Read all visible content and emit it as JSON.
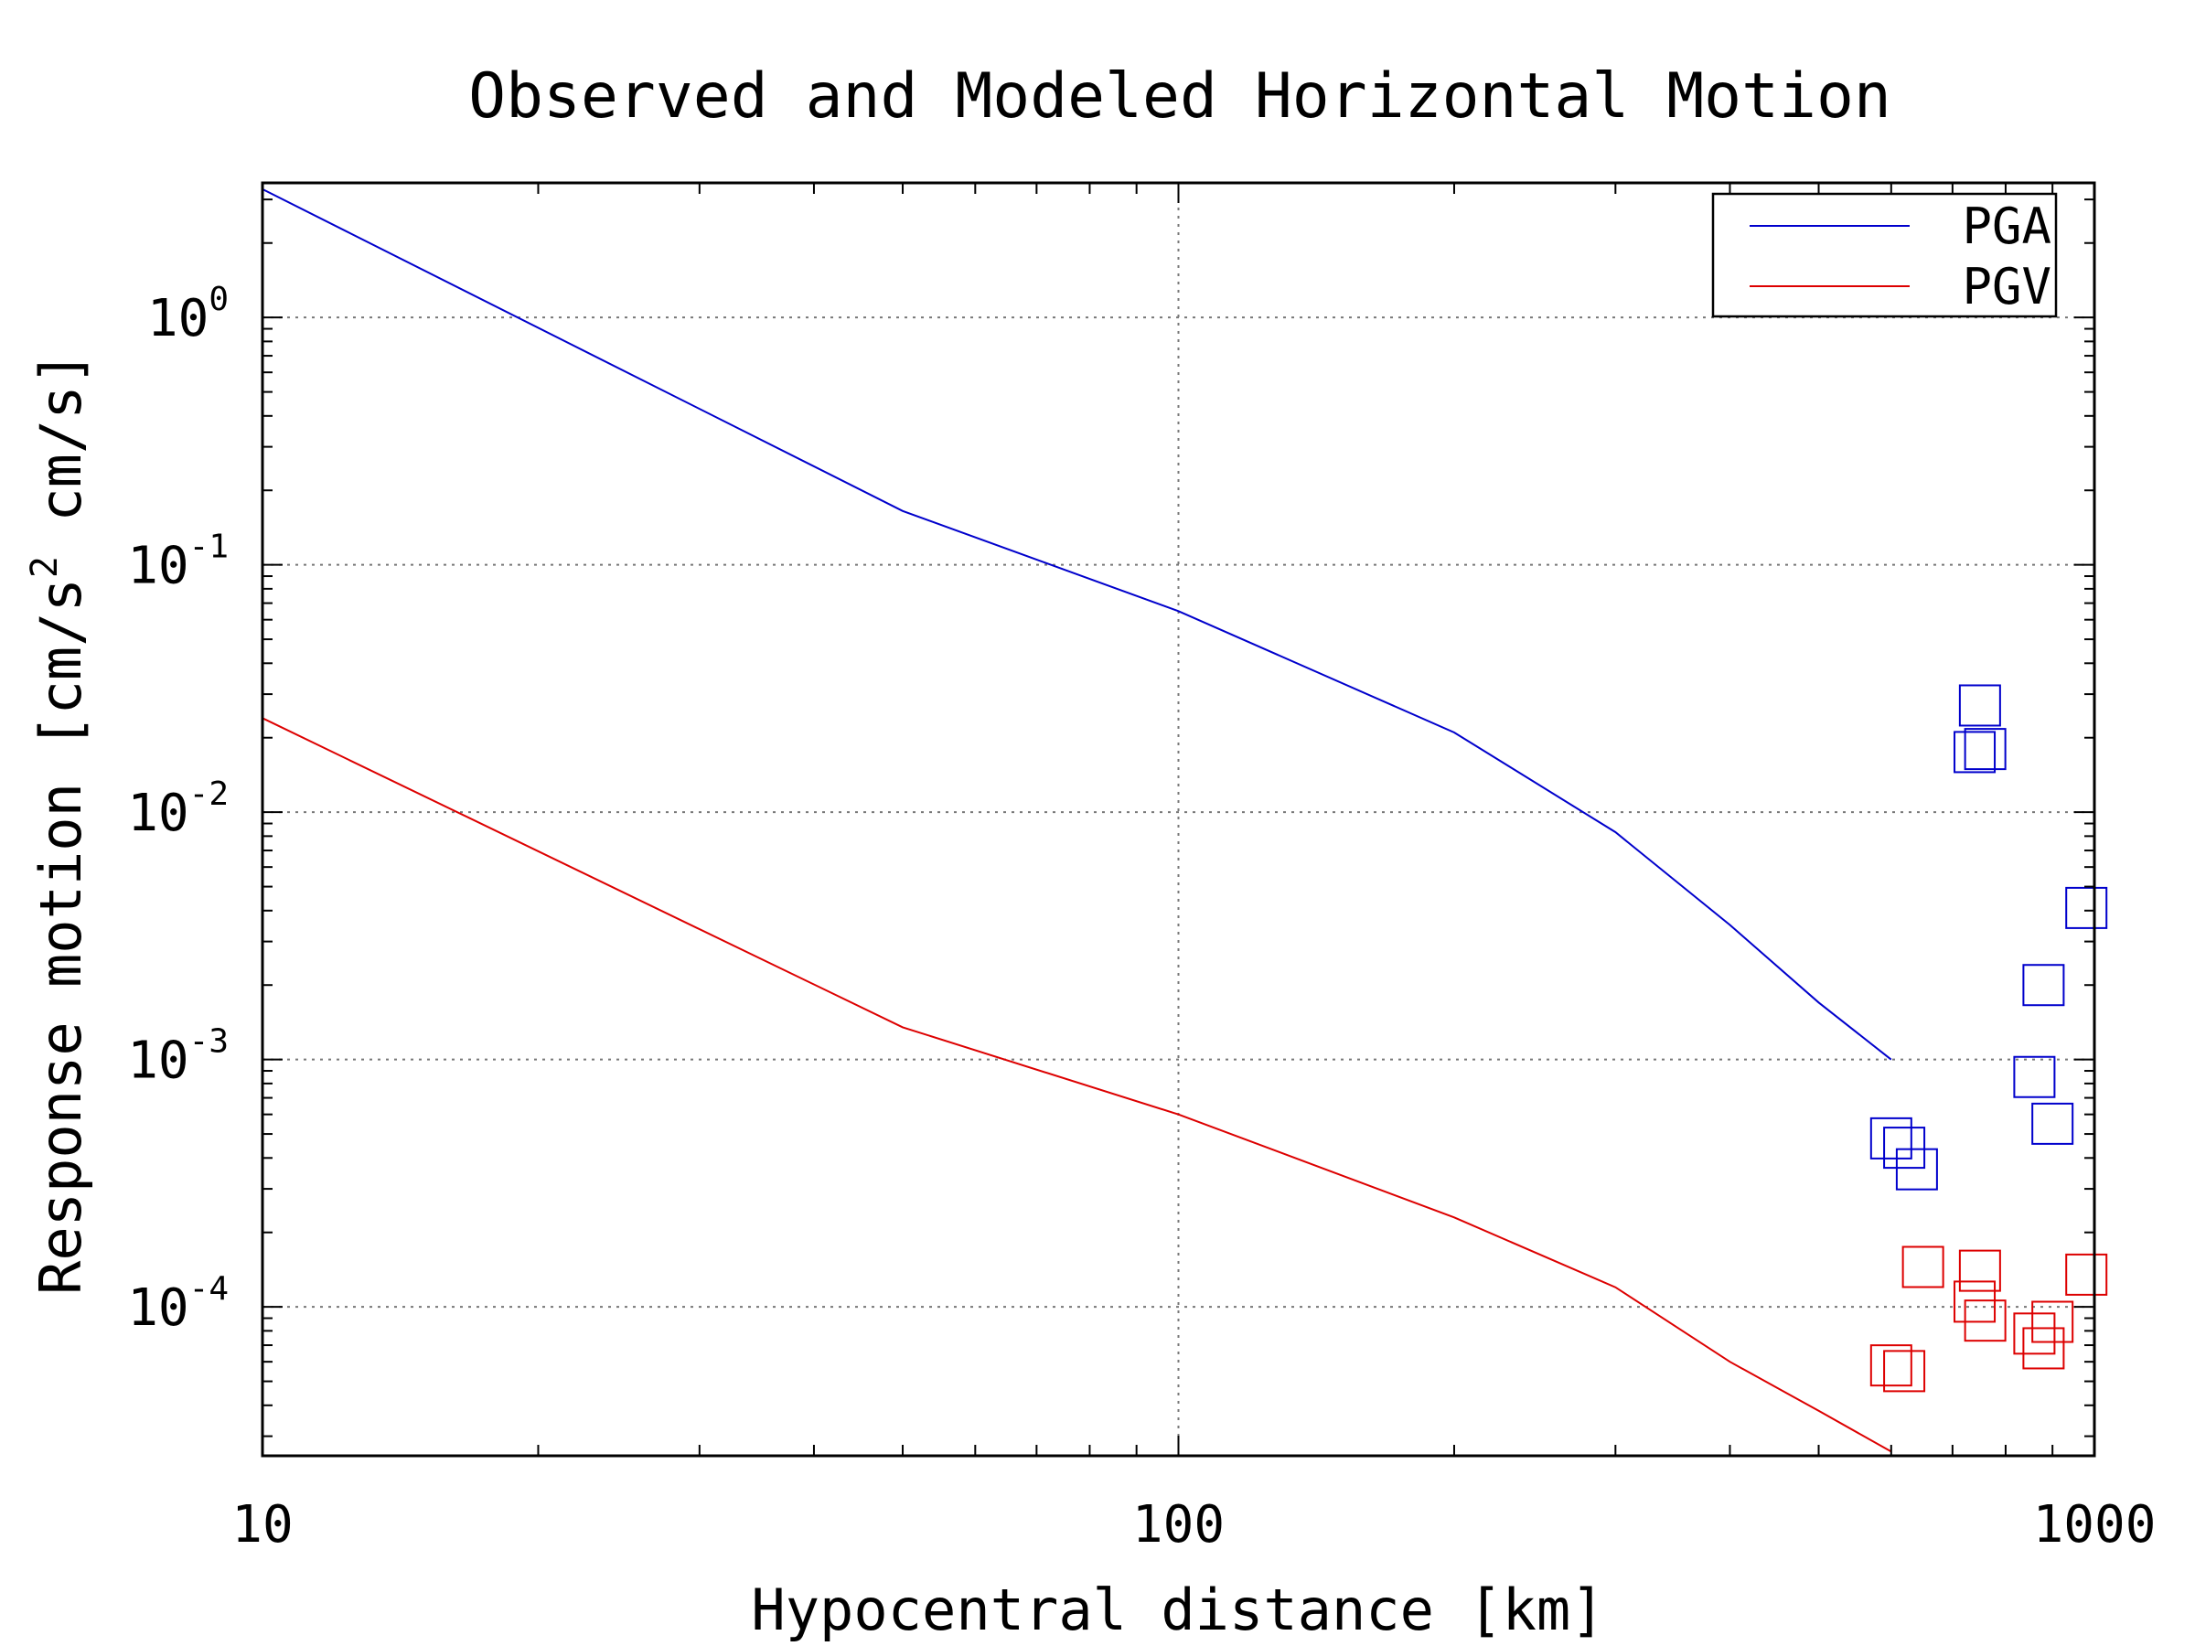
{
  "chart_data": {
    "type": "scatter",
    "title": "Observed and Modeled Horizontal Motion",
    "xlabel": "Hypocentral distance [km]",
    "ylabel_parts": [
      "Response motion  [cm/s",
      "2",
      "  cm/s]"
    ],
    "x_scale": "log",
    "y_scale": "log",
    "xlim": [
      10,
      1000
    ],
    "ylim": [
      2.5e-05,
      3.5
    ],
    "x_ticks": [
      {
        "value": 10,
        "label": "10"
      },
      {
        "value": 100,
        "label": "100"
      },
      {
        "value": 1000,
        "label": "1000"
      }
    ],
    "y_ticks": [
      {
        "value": 1,
        "base": "10",
        "exp": "0"
      },
      {
        "value": 0.1,
        "base": "10",
        "exp": "-1"
      },
      {
        "value": 0.01,
        "base": "10",
        "exp": "-2"
      },
      {
        "value": 0.001,
        "base": "10",
        "exp": "-3"
      },
      {
        "value": 0.0001,
        "base": "10",
        "exp": "-4"
      }
    ],
    "grid": true,
    "legend_position": "top-right",
    "colors": {
      "PGA": "#0000cc",
      "PGV": "#dd0000"
    },
    "series": [
      {
        "name": "PGA",
        "kind": "line",
        "x": [
          10,
          50,
          100,
          200,
          300,
          400,
          500,
          600
        ],
        "y": [
          3.3,
          0.165,
          0.065,
          0.021,
          0.0083,
          0.0035,
          0.0017,
          0.001
        ]
      },
      {
        "name": "PGV",
        "kind": "line",
        "x": [
          10,
          50,
          100,
          200,
          300,
          400,
          500,
          600
        ],
        "y": [
          0.024,
          0.00135,
          0.0006,
          0.00023,
          0.00012,
          6e-05,
          3.8e-05,
          2.6e-05
        ]
      },
      {
        "name": "PGA",
        "kind": "points",
        "x": [
          750,
          760,
          740,
          980,
          880,
          860,
          900,
          600,
          620,
          640
        ],
        "y": [
          0.027,
          0.018,
          0.0175,
          0.0041,
          0.002,
          0.00085,
          0.00055,
          0.00048,
          0.00044,
          0.00036
        ]
      },
      {
        "name": "PGV",
        "kind": "points",
        "x": [
          650,
          750,
          740,
          760,
          860,
          880,
          900,
          980,
          600,
          620
        ],
        "y": [
          0.000145,
          0.00014,
          0.000105,
          8.8e-05,
          7.8e-05,
          6.8e-05,
          8.7e-05,
          0.000135,
          5.8e-05,
          5.5e-05
        ]
      }
    ]
  }
}
